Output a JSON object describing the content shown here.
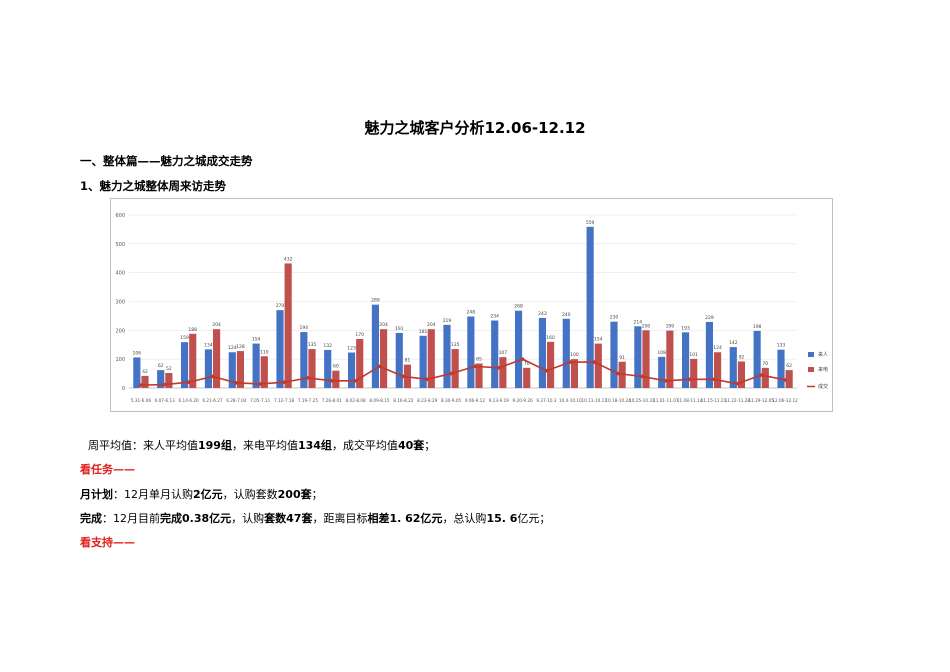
{
  "doc": {
    "title": "魅力之城客户分析12.06-12.12",
    "heading1": "一、整体篇——魅力之城成交走势",
    "heading2": "1、魅力之城整体周来访走势",
    "avg_line": {
      "p1": "周平均值：来人平均值",
      "v1": "199组",
      "p2": "，来电平均值",
      "v2": "134组",
      "p3": "，成交平均值",
      "v3": "40套",
      "p4": "；"
    },
    "task_label": "看任务——",
    "plan": {
      "p1": "月计划",
      "p2": "：12月单月认购",
      "v1": "2亿元",
      "p3": "，认购套数",
      "v2": "200套",
      "p4": "；"
    },
    "done": {
      "p1": "完成",
      "p2": "：12月目前",
      "v1": "完成0.38亿元",
      "p3": "，认购",
      "v2": "套数47套",
      "p4": "，距离目标",
      "v3": "相差1. 62亿元",
      "p5": "，总认购",
      "v4": "15. 6",
      "p6": "亿元；"
    },
    "support_label": "看支持——"
  },
  "chart_data": {
    "type": "bar",
    "colors": {
      "visitors": "#4472c4",
      "calls": "#c0504d",
      "deals": "#c0392b"
    },
    "ylim": [
      0,
      600
    ],
    "yticks": [
      "0",
      "100",
      "200",
      "300",
      "400",
      "500",
      "600"
    ],
    "categories": [
      "5.31-6.06",
      "6.07-6.13",
      "6.14-6.20",
      "6.21-6.27",
      "6.28-7.04",
      "7.05-7.11",
      "7.12-7.18",
      "7.19-7.25",
      "7.26-8.01",
      "8.02-8.08",
      "8.09-8.15",
      "8.16-8.22",
      "8.23-8.29",
      "8.30-9.05",
      "9.06-9.12",
      "9.13-9.19",
      "9.20-9.26",
      "9.27-10.3",
      "10.4-10.10",
      "10.11-10.17",
      "10.18-10.24",
      "10.25-10.31",
      "11.01-11.07",
      "11.08-11.14",
      "11.15-11.21",
      "11.22-11.28",
      "11.29-12.05",
      "12.06-12.12"
    ],
    "series": [
      {
        "name": "来人",
        "key": "visitors",
        "values": [
          106,
          62,
          159,
          134,
          124,
          154,
          270,
          194,
          132,
          123,
          289,
          191,
          181,
          219,
          248,
          234,
          268,
          243,
          240,
          559,
          230,
          214,
          108,
          193,
          229,
          142,
          198,
          133
        ]
      },
      {
        "name": "来电",
        "key": "calls",
        "values": [
          42,
          52,
          188,
          204,
          128,
          110,
          432,
          135,
          60,
          170,
          204,
          81,
          204,
          135,
          85,
          107,
          70,
          160,
          100,
          154,
          91,
          200,
          199,
          101,
          124,
          92,
          70,
          62
        ]
      },
      {
        "name": "成交",
        "key": "deals",
        "values": [
          10,
          12,
          20,
          40,
          18,
          14,
          20,
          35,
          25,
          25,
          75,
          40,
          30,
          50,
          75,
          70,
          100,
          60,
          90,
          90,
          50,
          40,
          25,
          30,
          30,
          15,
          45,
          28
        ]
      }
    ],
    "legend": [
      "来人",
      "来电",
      "成交"
    ],
    "legend_position": "right"
  }
}
